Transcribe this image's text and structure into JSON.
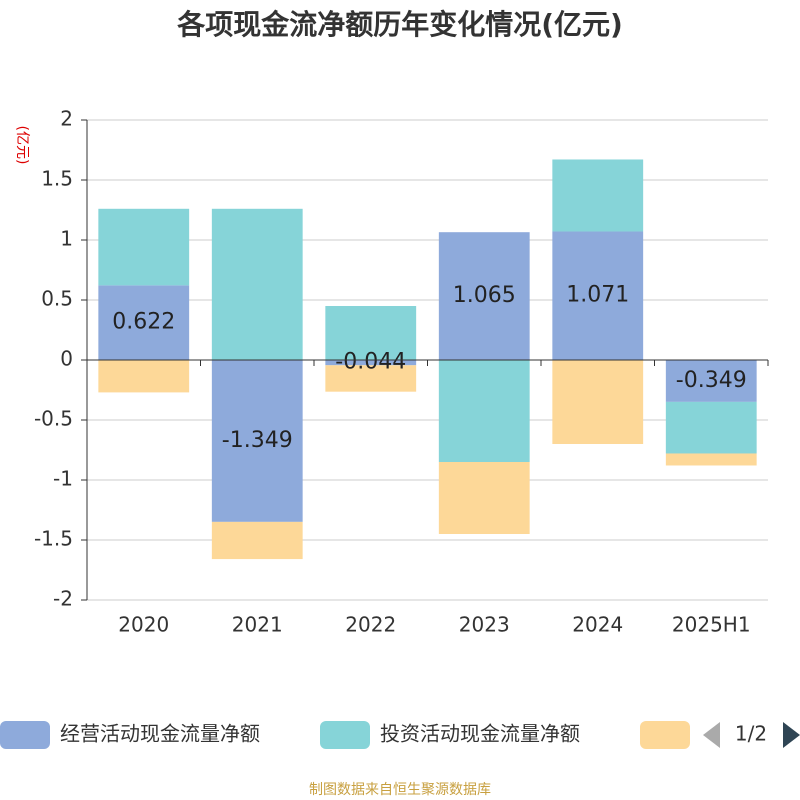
{
  "chart_data": {
    "type": "bar",
    "stacked": true,
    "title": "各项现金流净额历年变化情况(亿元)",
    "y_axis_label": "(亿元)",
    "categories": [
      "2020",
      "2021",
      "2022",
      "2023",
      "2024",
      "2025H1"
    ],
    "series": [
      {
        "name": "经营活动现金流量净额",
        "color": "#8eaadb",
        "values": [
          0.622,
          -1.349,
          -0.044,
          1.065,
          1.071,
          -0.349
        ],
        "show_labels": true
      },
      {
        "name": "投资活动现金流量净额",
        "color": "#86d4d8",
        "values": [
          0.638,
          1.26,
          0.45,
          -0.85,
          0.6,
          -0.43
        ]
      },
      {
        "color": "#fdd898",
        "values": [
          -0.27,
          -0.31,
          -0.22,
          -0.6,
          -0.7,
          -0.1
        ]
      }
    ],
    "ylim": [
      -2,
      2
    ],
    "yticks": [
      -2,
      -1.5,
      -1,
      -0.5,
      0,
      0.5,
      1,
      1.5,
      2
    ],
    "grid": true,
    "legend_page": "1/2",
    "source": "制图数据来自恒生聚源数据库"
  }
}
